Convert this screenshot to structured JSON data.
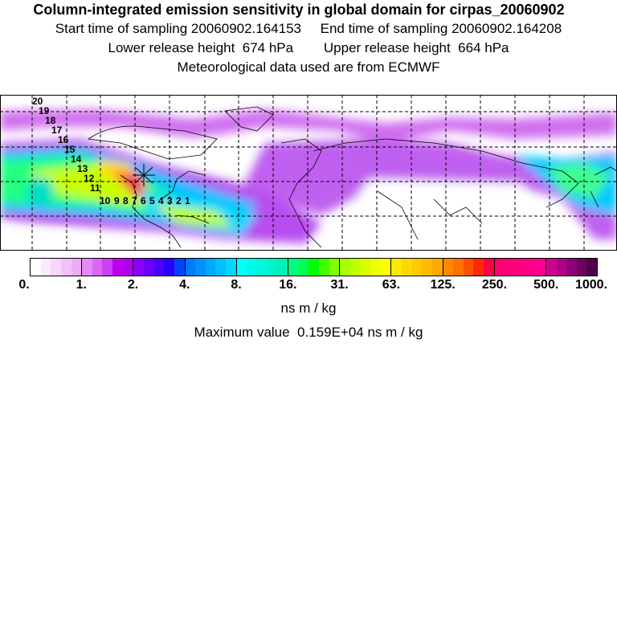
{
  "header": {
    "title": "Column-integrated emission sensitivity in global domain for cirpas_20060902",
    "sampling_times": "Start time of sampling 20060902.164153     End time of sampling 20060902.164208",
    "release_heights": "Lower release height  674 hPa        Upper release height  664 hPa",
    "met_data": "Meteorological data used are from ECMWF"
  },
  "map": {
    "trajectory_labels": [
      "20",
      "19",
      "18",
      "17",
      "16",
      "15",
      "14",
      "13",
      "12",
      "11",
      "10",
      "9",
      "8",
      "7",
      "6",
      "5",
      "4",
      "3",
      "2",
      "1"
    ]
  },
  "colorbar": {
    "ticks": [
      "0.",
      "1.",
      "2.",
      "4.",
      "8.",
      "16.",
      "31.",
      "63.",
      "125.",
      "250.",
      "500.",
      "1000."
    ],
    "bins": [
      [
        "#ffffff",
        "#fde8fd",
        "#f9d4fb",
        "#f4c0f9",
        "#eeaaf7"
      ],
      [
        "#e58af5",
        "#d967f3",
        "#cc3ff2",
        "#bf00f0",
        "#b000ee"
      ],
      [
        "#8a00ff",
        "#6a00ff",
        "#4b00ff",
        "#2a00ff",
        "#0044ff"
      ],
      [
        "#0078ff",
        "#0090ff",
        "#00a8ff",
        "#00c0ff",
        "#00d8ff"
      ],
      [
        "#00ffff",
        "#00fce8",
        "#00f8d8",
        "#00f4c8",
        "#00f0b8"
      ],
      [
        "#00ff80",
        "#00ff50",
        "#00ff00",
        "#40ff00",
        "#80ff00"
      ],
      [
        "#a8ff00",
        "#c0ff00",
        "#d8ff00",
        "#eeff00",
        "#ffff00"
      ],
      [
        "#ffe800",
        "#ffd800",
        "#ffc800",
        "#ffb800",
        "#ffa800"
      ],
      [
        "#ff8800",
        "#ff7000",
        "#ff5000",
        "#ff2800",
        "#ff0040"
      ],
      [
        "#ff0070",
        "#ff0078",
        "#ff0080",
        "#ff0088",
        "#ff0090"
      ],
      [
        "#d00090",
        "#b00088",
        "#900078",
        "#700060",
        "#500048"
      ]
    ],
    "unit": "ns m / kg"
  },
  "footer": {
    "maximum_value": "Maximum value  0.159E+04 ns m / kg"
  }
}
